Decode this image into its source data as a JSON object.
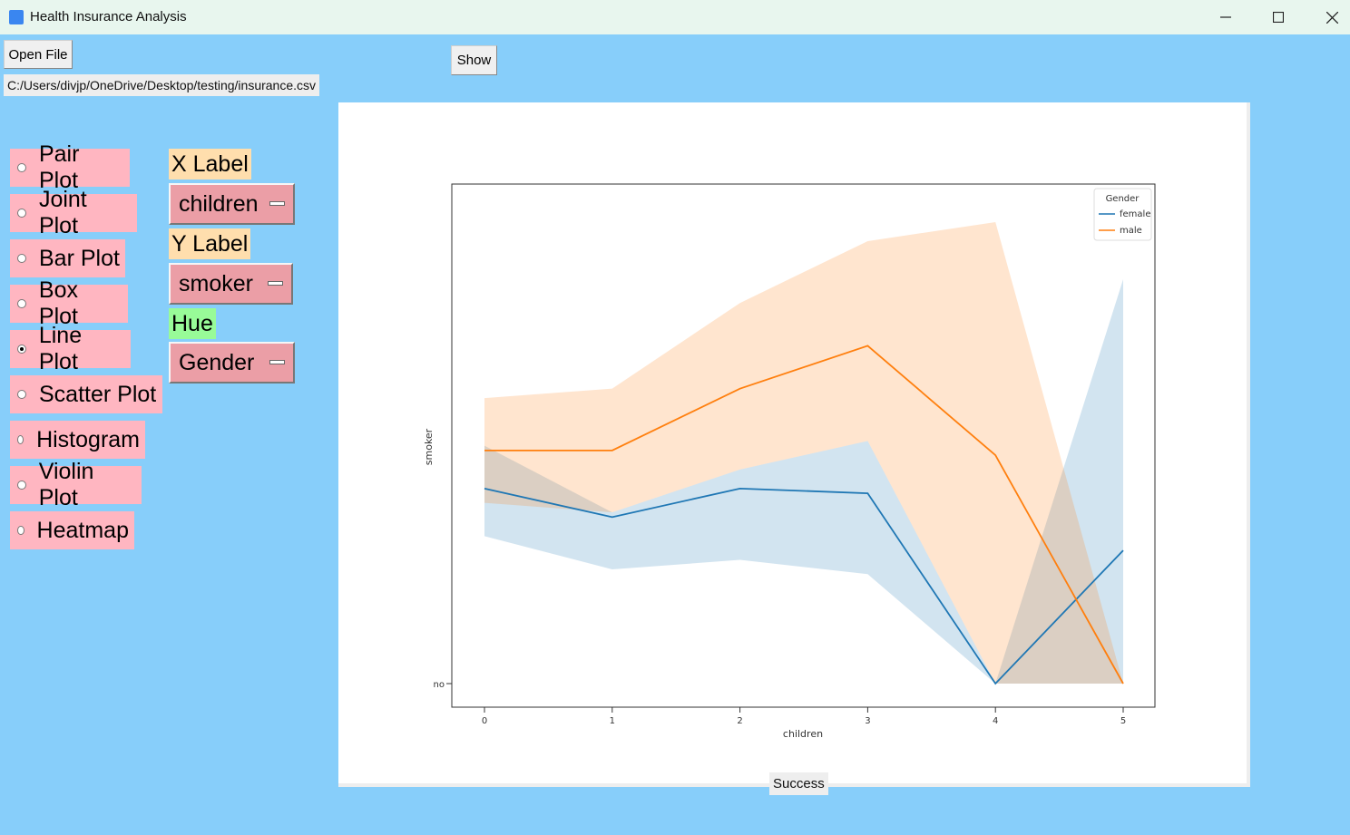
{
  "window": {
    "title": "Health Insurance Analysis"
  },
  "toolbar": {
    "open_file_label": "Open File",
    "show_label": "Show",
    "file_path": "C:/Users/divjp/OneDrive/Desktop/testing/insurance.csv"
  },
  "plot_types": [
    {
      "label": "Pair Plot",
      "selected": false
    },
    {
      "label": "Joint Plot",
      "selected": false
    },
    {
      "label": "Bar Plot",
      "selected": false
    },
    {
      "label": "Box Plot",
      "selected": false
    },
    {
      "label": "Line Plot",
      "selected": true
    },
    {
      "label": "Scatter Plot",
      "selected": false
    },
    {
      "label": "Histogram",
      "selected": false
    },
    {
      "label": "Violin Plot",
      "selected": false
    },
    {
      "label": "Heatmap",
      "selected": false
    }
  ],
  "controls": {
    "x_label_title": "X Label",
    "x_value": "children",
    "y_label_title": "Y Label",
    "y_value": "smoker",
    "hue_title": "Hue",
    "hue_value": "Gender"
  },
  "colors": {
    "x_label_bg": "#ffdead",
    "hue_bg": "#98fb98",
    "radio_bg": "#ffb6c1",
    "dropdown_bg": "#eb9ea6",
    "female": "#1f77b4",
    "male": "#ff7f0e"
  },
  "chart_data": {
    "type": "line",
    "xlabel": "children",
    "ylabel": "smoker",
    "x": [
      0,
      1,
      2,
      3,
      4,
      5
    ],
    "ytick_label": "no",
    "ylim": [
      0,
      1.05
    ],
    "legend_title": "Gender",
    "legend_position": "top-right",
    "series": [
      {
        "name": "female",
        "values": [
          0.41,
          0.35,
          0.41,
          0.4,
          0.0,
          0.28
        ],
        "ci_low": [
          0.31,
          0.24,
          0.26,
          0.23,
          0.0,
          0.0
        ],
        "ci_high": [
          0.5,
          0.36,
          0.45,
          0.51,
          0.0,
          0.85
        ]
      },
      {
        "name": "male",
        "values": [
          0.49,
          0.49,
          0.62,
          0.71,
          0.48,
          0.0
        ],
        "ci_low": [
          0.38,
          0.36,
          0.45,
          0.51,
          0.0,
          0.0
        ],
        "ci_high": [
          0.6,
          0.62,
          0.8,
          0.93,
          0.97,
          0.0
        ]
      }
    ]
  },
  "status": {
    "text": "Success"
  }
}
